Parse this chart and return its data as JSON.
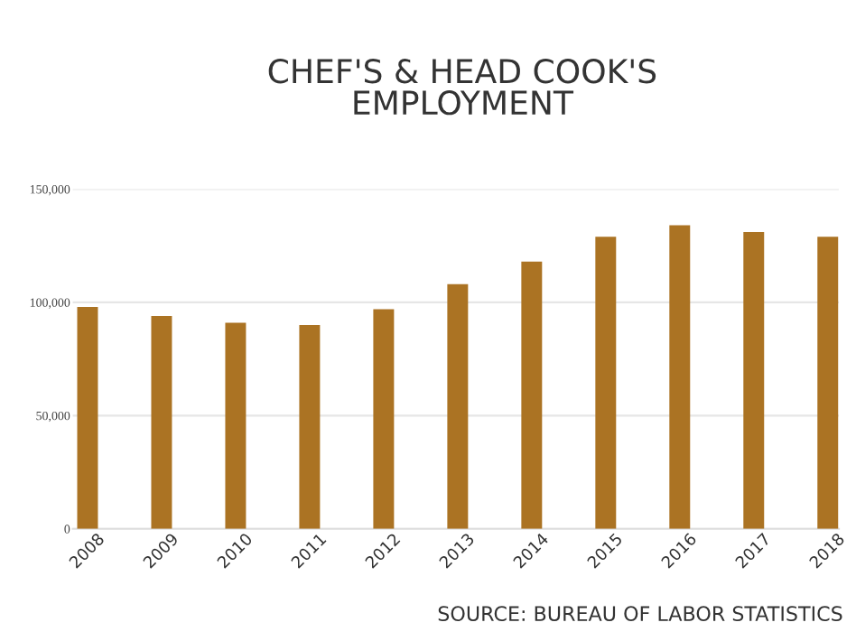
{
  "chart_data": {
    "type": "bar",
    "title": "CHEF'S & HEAD COOK'S\nEMPLOYMENT",
    "categories": [
      "2008",
      "2009",
      "2010",
      "2011",
      "2012",
      "2013",
      "2014",
      "2015",
      "2016",
      "2017",
      "2018"
    ],
    "values": [
      98000,
      94000,
      91000,
      90000,
      97000,
      108000,
      118000,
      129000,
      134000,
      131000,
      129000
    ],
    "color": "#ab7323",
    "ylim": [
      0,
      150000
    ],
    "yticks": [
      {
        "value": 0,
        "label": "0"
      },
      {
        "value": 50000,
        "label": "50,000"
      },
      {
        "value": 100000,
        "label": "100,000"
      },
      {
        "value": 150000,
        "label": "150,000"
      }
    ],
    "grid": "y",
    "annotations": [
      "SOURCE: BUREAU OF LABOR STATISTICS"
    ]
  }
}
